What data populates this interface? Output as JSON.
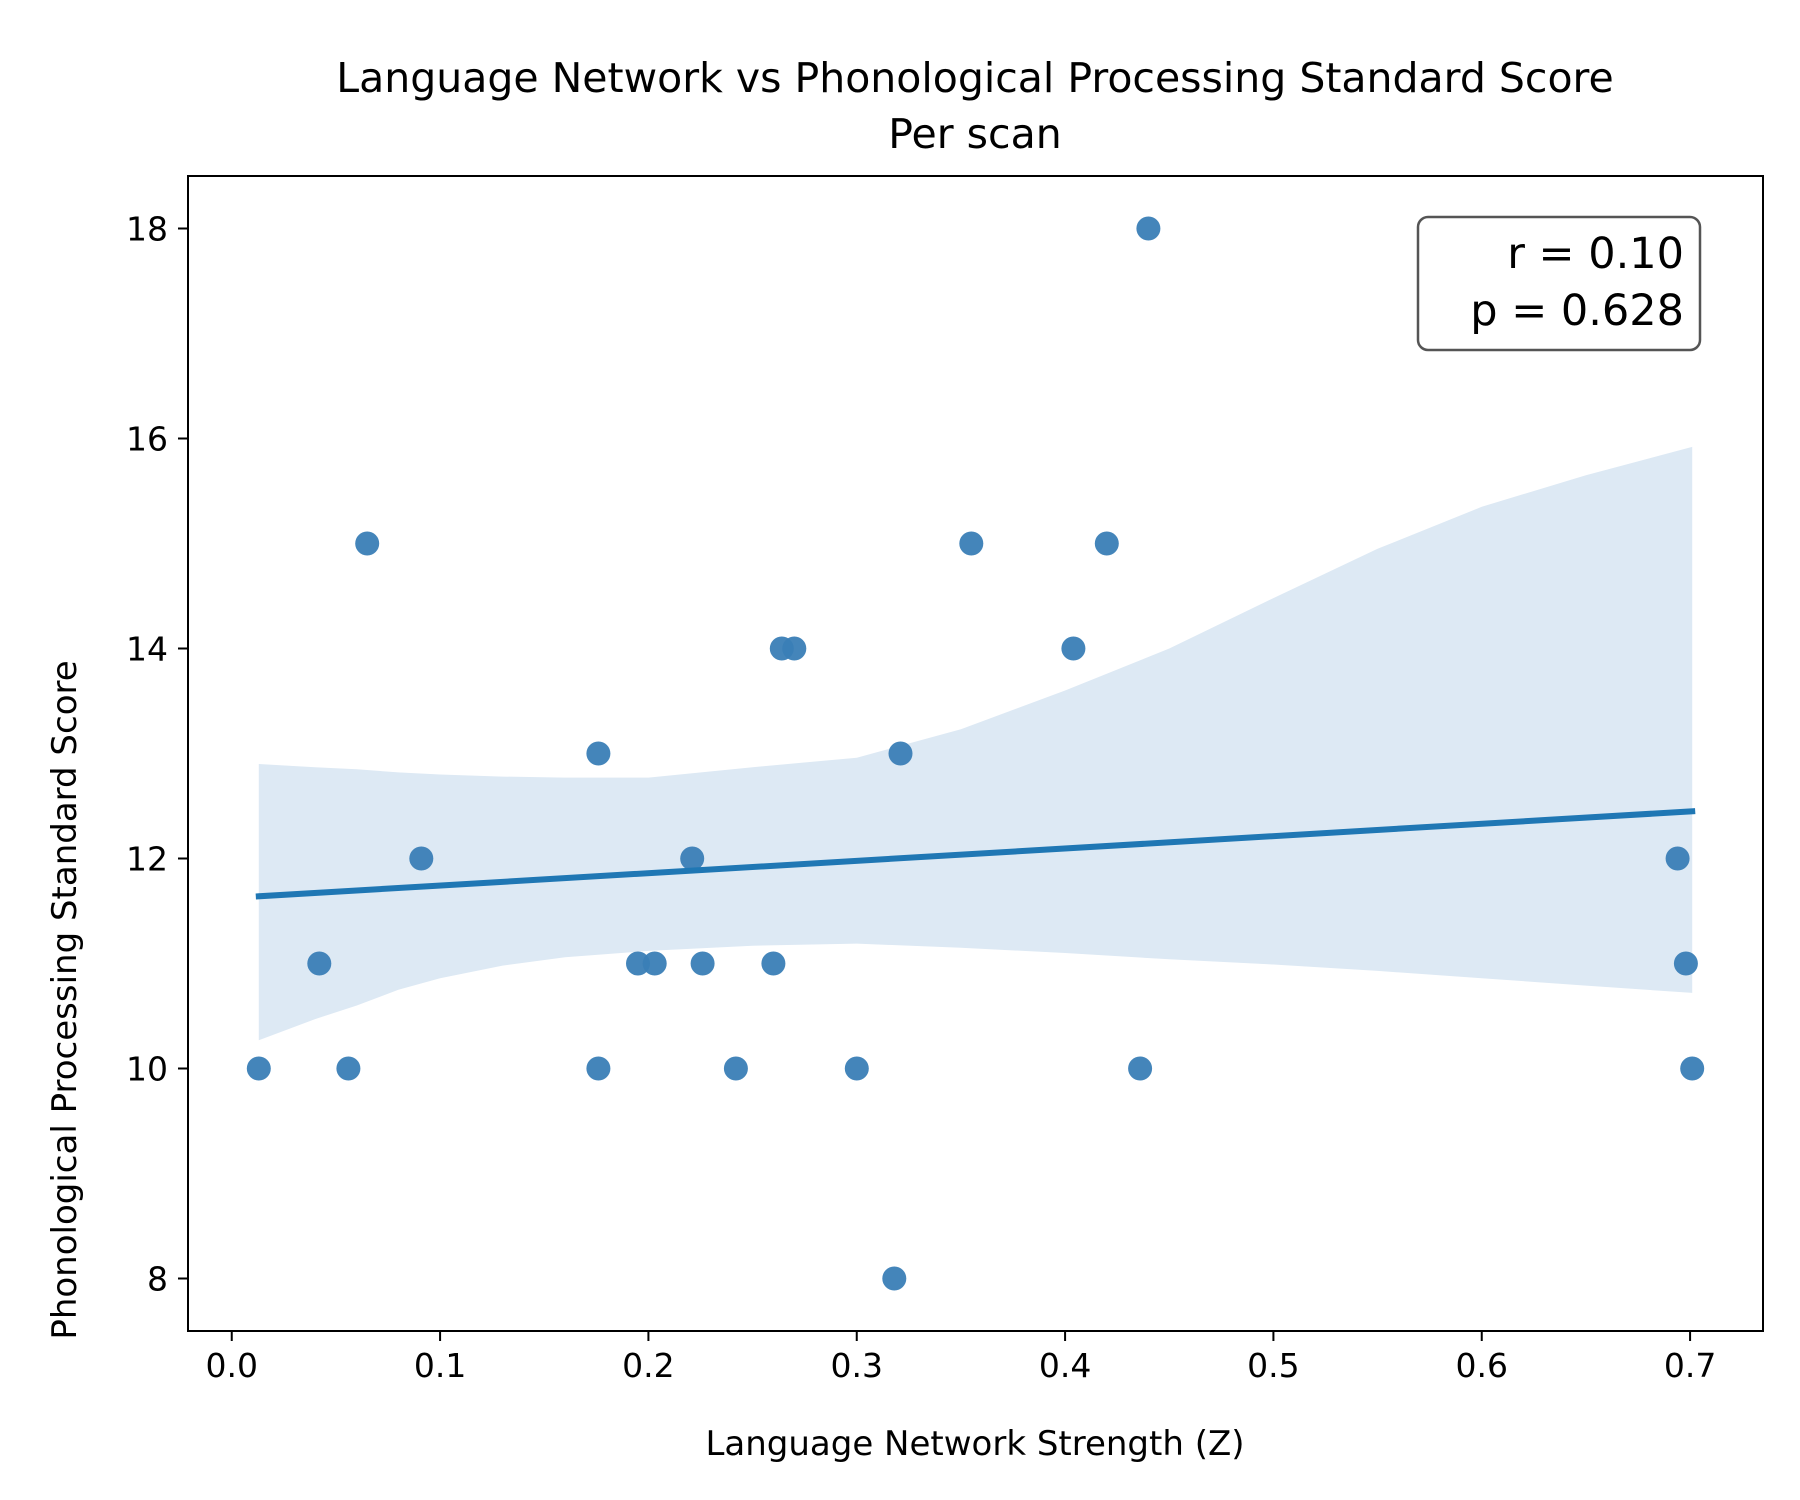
{
  "chart_data": {
    "type": "scatter",
    "title": "Language Network vs Phonological Processing Standard Score",
    "subtitle": "Per scan",
    "xlabel": "Language Network Strength (Z)",
    "ylabel": "Phonological Processing Standard Score",
    "xlim": [
      -0.021,
      0.735
    ],
    "ylim": [
      7.5,
      18.5
    ],
    "xticks": [
      0.0,
      0.1,
      0.2,
      0.3,
      0.4,
      0.5,
      0.6,
      0.7
    ],
    "xtick_labels": [
      "0.0",
      "0.1",
      "0.2",
      "0.3",
      "0.4",
      "0.5",
      "0.6",
      "0.7"
    ],
    "yticks": [
      8,
      10,
      12,
      14,
      16,
      18
    ],
    "ytick_labels": [
      "8",
      "10",
      "12",
      "14",
      "16",
      "18"
    ],
    "grid": false,
    "annotation": {
      "lines": [
        "r = 0.10",
        "p = 0.628"
      ],
      "position": "top-right"
    },
    "colors": {
      "points": "#3a7eb6",
      "regression": "#1f77b4",
      "confidence_band": "#dde9f4"
    },
    "points": [
      {
        "x": 0.013,
        "y": 10
      },
      {
        "x": 0.042,
        "y": 11
      },
      {
        "x": 0.056,
        "y": 10
      },
      {
        "x": 0.065,
        "y": 15
      },
      {
        "x": 0.091,
        "y": 12
      },
      {
        "x": 0.176,
        "y": 13
      },
      {
        "x": 0.176,
        "y": 10
      },
      {
        "x": 0.195,
        "y": 11
      },
      {
        "x": 0.203,
        "y": 11
      },
      {
        "x": 0.221,
        "y": 12
      },
      {
        "x": 0.226,
        "y": 11
      },
      {
        "x": 0.242,
        "y": 10
      },
      {
        "x": 0.26,
        "y": 11
      },
      {
        "x": 0.264,
        "y": 14
      },
      {
        "x": 0.27,
        "y": 14
      },
      {
        "x": 0.3,
        "y": 10
      },
      {
        "x": 0.318,
        "y": 8
      },
      {
        "x": 0.321,
        "y": 13
      },
      {
        "x": 0.355,
        "y": 15
      },
      {
        "x": 0.404,
        "y": 14
      },
      {
        "x": 0.42,
        "y": 15
      },
      {
        "x": 0.436,
        "y": 10
      },
      {
        "x": 0.44,
        "y": 18
      },
      {
        "x": 0.694,
        "y": 12
      },
      {
        "x": 0.698,
        "y": 11
      },
      {
        "x": 0.701,
        "y": 10
      }
    ],
    "regression_line": {
      "x": [
        0.013,
        0.701
      ],
      "y": [
        11.64,
        12.45
      ]
    },
    "confidence_band": {
      "x": [
        0.013,
        0.04,
        0.06,
        0.08,
        0.1,
        0.13,
        0.16,
        0.2,
        0.25,
        0.3,
        0.35,
        0.4,
        0.45,
        0.5,
        0.55,
        0.6,
        0.65,
        0.701
      ],
      "lower": [
        10.27,
        10.47,
        10.6,
        10.75,
        10.86,
        10.98,
        11.06,
        11.12,
        11.17,
        11.19,
        11.15,
        11.1,
        11.04,
        10.99,
        10.93,
        10.86,
        10.79,
        10.72
      ],
      "upper": [
        12.9,
        12.87,
        12.85,
        12.82,
        12.8,
        12.78,
        12.77,
        12.77,
        12.87,
        12.96,
        13.23,
        13.6,
        14.0,
        14.48,
        14.95,
        15.35,
        15.65,
        15.92
      ]
    }
  }
}
